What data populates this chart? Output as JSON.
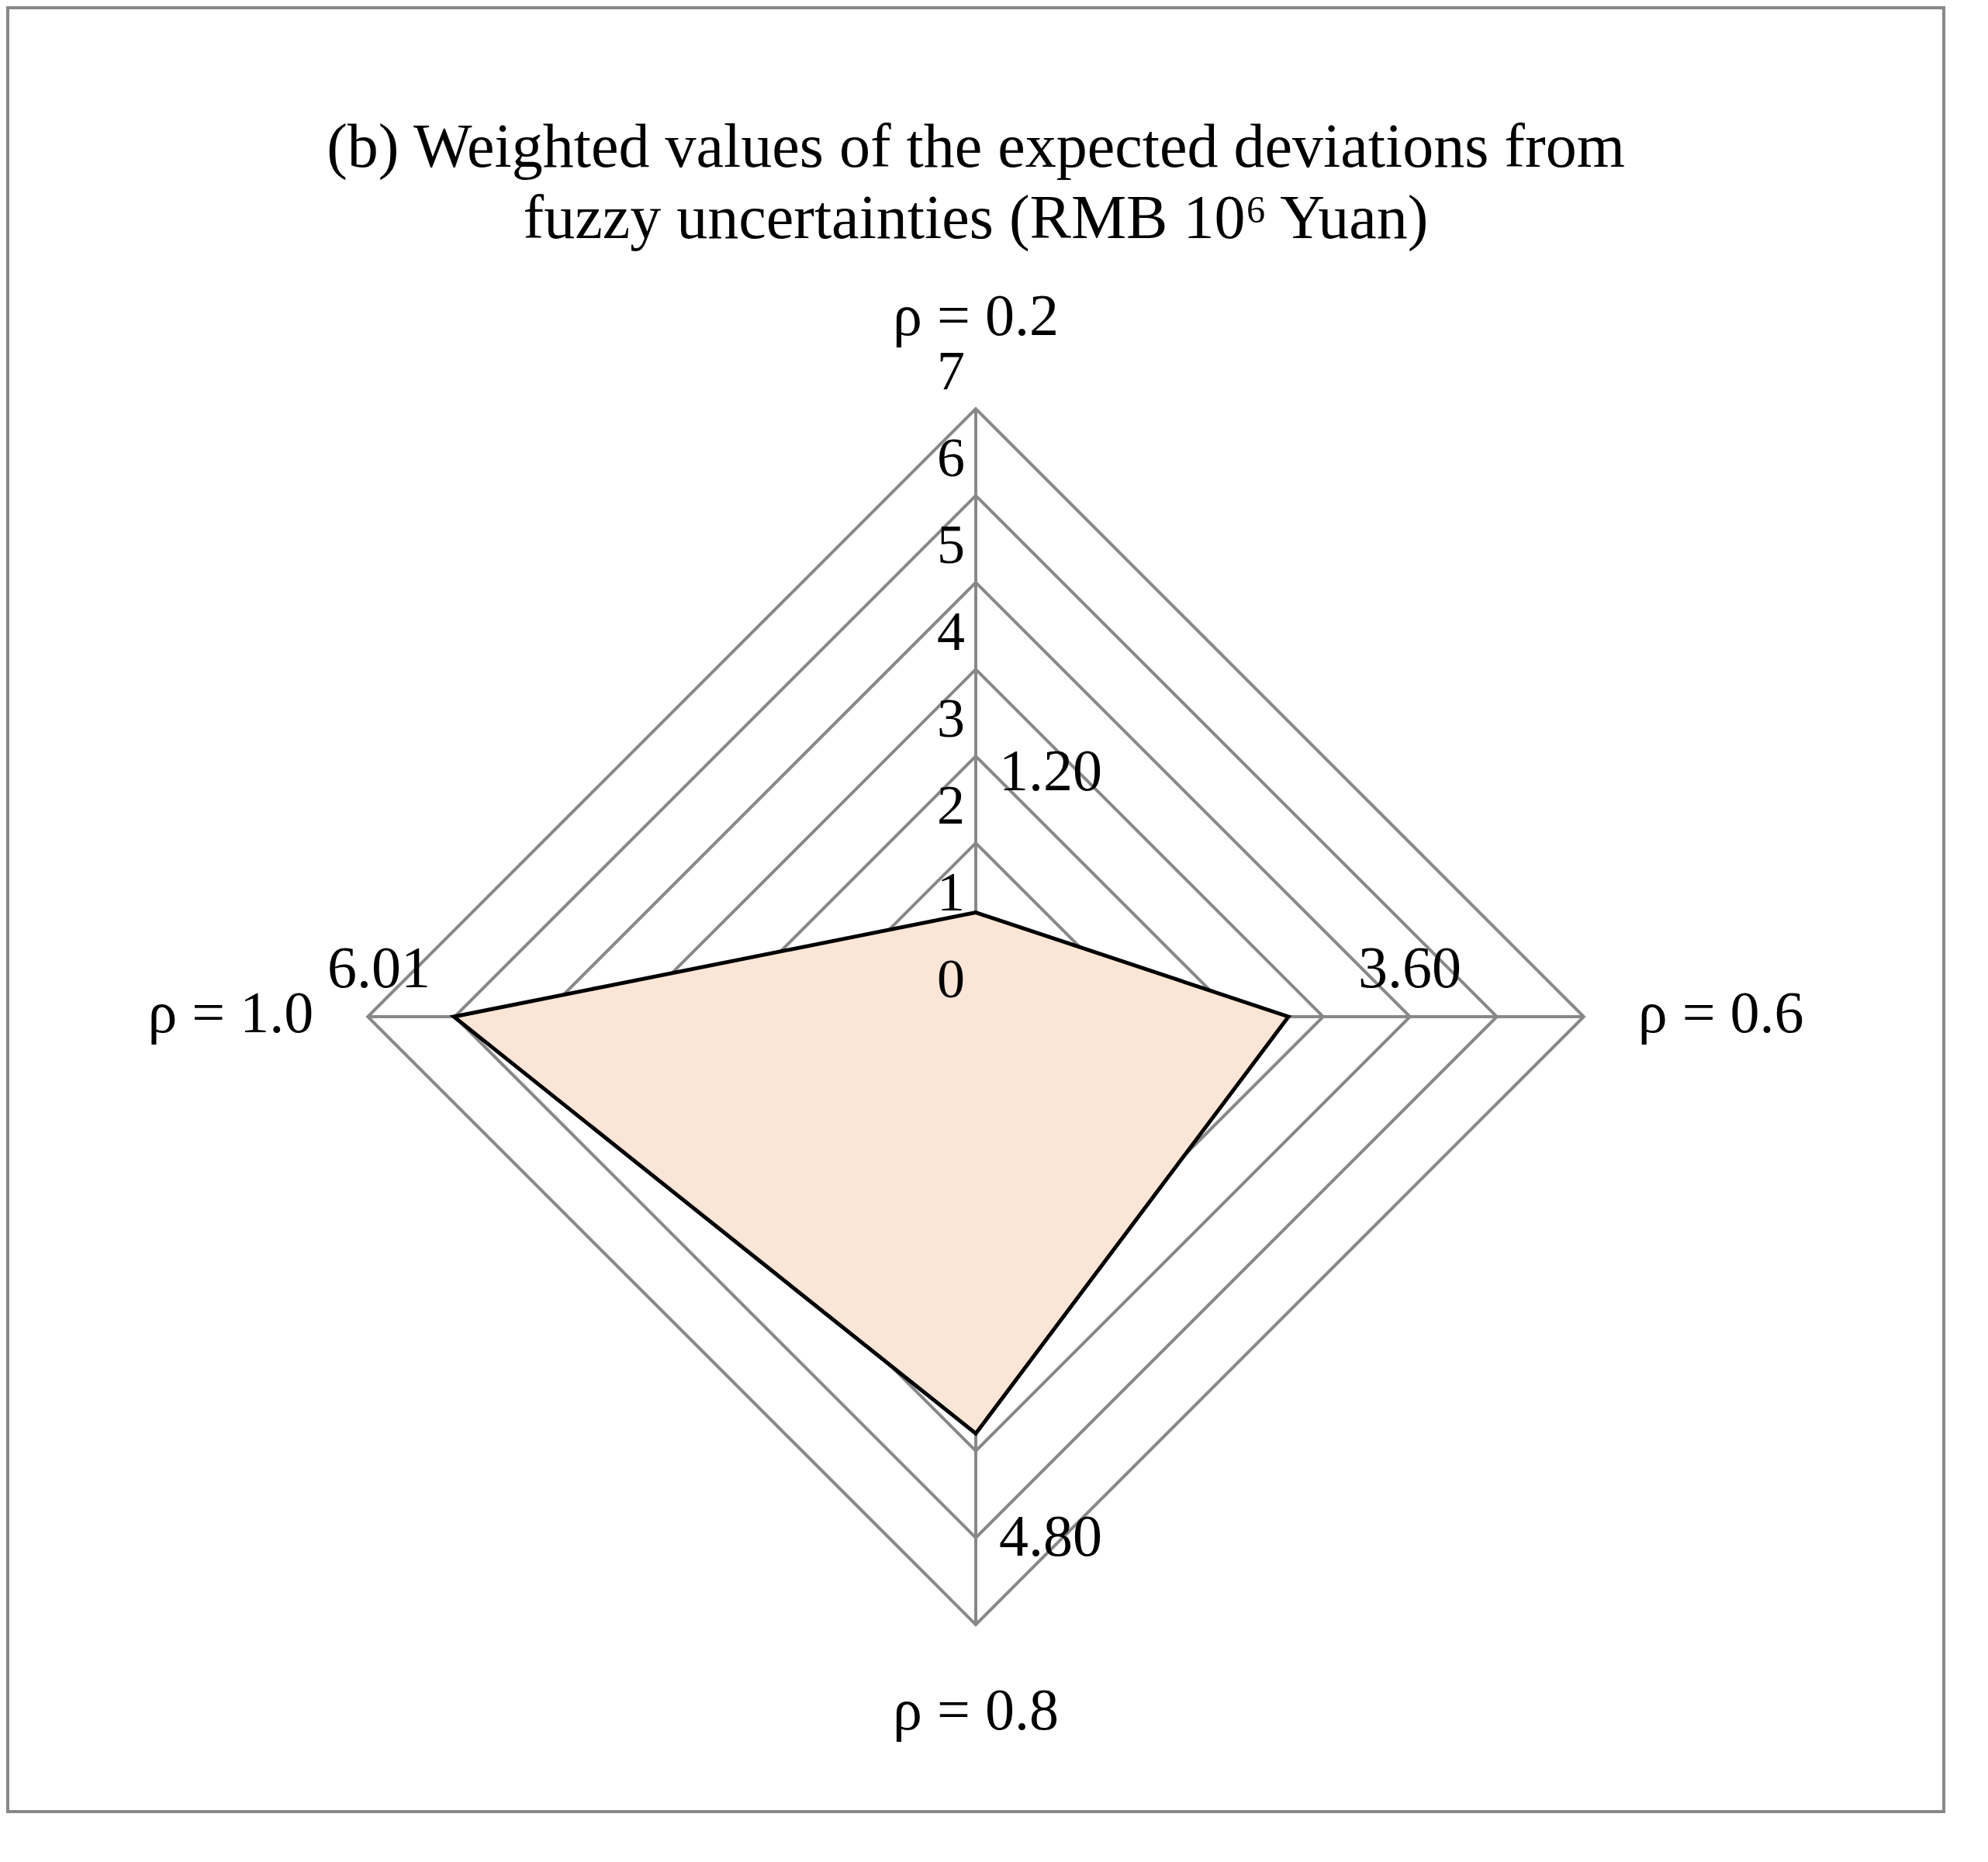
{
  "chart_data": {
    "type": "radar",
    "title": "(b) Weighted values of the expected deviations from fuzzy uncertainties (RMB 10⁶ Yuan)",
    "categories": [
      "ρ = 0.2",
      "ρ = 0.6",
      "ρ = 0.8",
      "ρ = 1.0"
    ],
    "series": [
      {
        "color": "#fbe5d6",
        "values": [
          1.2,
          3.6,
          4.8,
          6.01
        ],
        "value_labels": [
          "1.20",
          "3.60",
          "4.80",
          "6.01"
        ]
      }
    ],
    "ylim": [
      0,
      7
    ],
    "yticks": [
      0,
      1,
      2,
      3,
      4,
      5,
      6,
      7
    ],
    "grid": true,
    "legend": false,
    "marker": "none"
  }
}
